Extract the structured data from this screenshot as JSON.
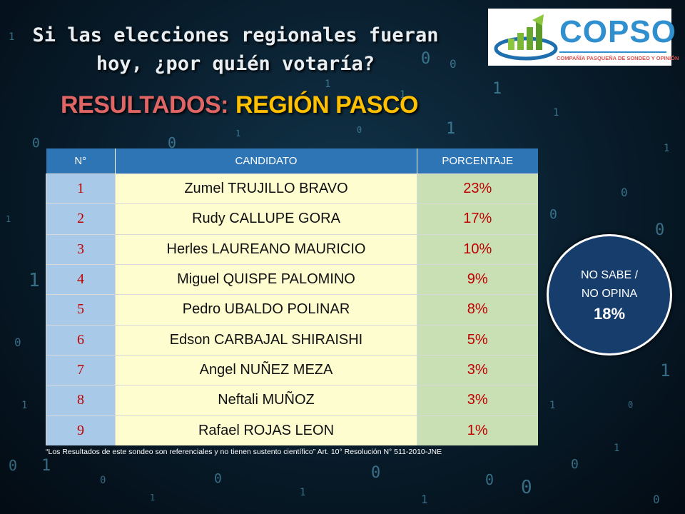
{
  "question": "Si las elecciones regionales  fueran hoy, ¿por quién votaría?",
  "results_title": {
    "part1": "RESULTADOS:",
    "part2": "REGIÓN PASCO"
  },
  "logo": {
    "name": "COPSO",
    "tagline": "COMPAÑÍA PASQUEÑA DE SONDEO Y OPINIÓN"
  },
  "chart_data": {
    "type": "table",
    "columns": [
      "N°",
      "CANDIDATO",
      "PORCENTAJE"
    ],
    "rows": [
      {
        "n": "1",
        "candidate": "Zumel TRUJILLO BRAVO",
        "pct": "23%"
      },
      {
        "n": "2",
        "candidate": "Rudy CALLUPE GORA",
        "pct": "17%"
      },
      {
        "n": "3",
        "candidate": "Herles LAUREANO MAURICIO",
        "pct": "10%"
      },
      {
        "n": "4",
        "candidate": "Miguel QUISPE PALOMINO",
        "pct": "9%"
      },
      {
        "n": "5",
        "candidate": "Pedro UBALDO POLINAR",
        "pct": "8%"
      },
      {
        "n": "6",
        "candidate": "Edson CARBAJAL SHIRAISHI",
        "pct": "5%"
      },
      {
        "n": "7",
        "candidate": "Angel NUÑEZ MEZA",
        "pct": "3%"
      },
      {
        "n": "8",
        "candidate": "Neftali MUÑOZ",
        "pct": "3%"
      },
      {
        "n": "9",
        "candidate": "Rafael ROJAS LEON",
        "pct": "1%"
      }
    ],
    "undecided": {
      "line1": "NO SABE /",
      "line2": "NO OPINA",
      "value": "18%"
    }
  },
  "disclaimer": "“Los Resultados de este sondeo son referenciales y no tienen sustento científico” Art. 10°  Resolución N° 511-2010-JNE",
  "colors": {
    "header_blue": "#2e75b6",
    "number_cell": "#a9c9e8",
    "name_cell": "#fdfdd0",
    "percent_cell": "#c9e0b4",
    "value_red": "#c00000",
    "title_red": "#e06666",
    "title_gold": "#ffc000",
    "circle_navy": "#163d6c"
  }
}
